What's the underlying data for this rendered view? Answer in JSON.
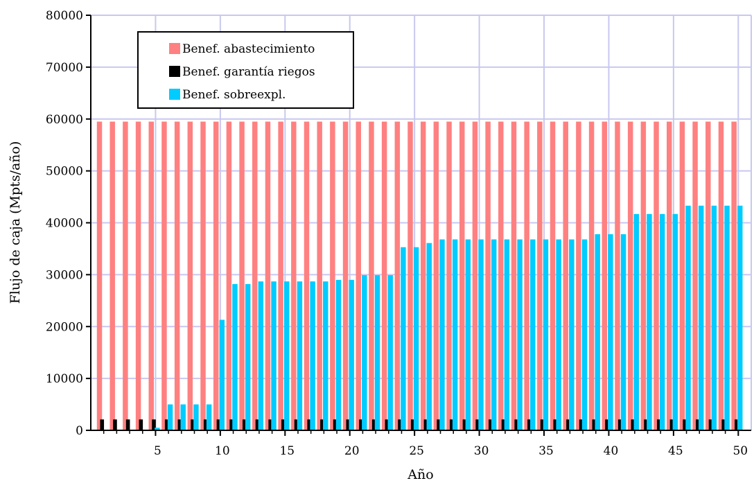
{
  "chart_data": {
    "type": "bar",
    "title": "",
    "xlabel": "Año",
    "ylabel": "Flujo de caja (Mpts/año)",
    "ylim": [
      0,
      80000
    ],
    "xlim": [
      0,
      51
    ],
    "yticks": [
      0,
      10000,
      20000,
      30000,
      40000,
      50000,
      60000,
      70000,
      80000
    ],
    "xticks": [
      5,
      10,
      15,
      20,
      25,
      30,
      35,
      40,
      45,
      50
    ],
    "grid": true,
    "legend_position": "top-left",
    "x": [
      1,
      2,
      3,
      4,
      5,
      6,
      7,
      8,
      9,
      10,
      11,
      12,
      13,
      14,
      15,
      16,
      17,
      18,
      19,
      20,
      21,
      22,
      23,
      24,
      25,
      26,
      27,
      28,
      29,
      30,
      31,
      32,
      33,
      34,
      35,
      36,
      37,
      38,
      39,
      40,
      41,
      42,
      43,
      44,
      45,
      46,
      47,
      48,
      49,
      50
    ],
    "series": [
      {
        "name": "Benef. abastecimiento",
        "color": "#FF8080",
        "values": [
          59500,
          59500,
          59500,
          59500,
          59500,
          59500,
          59500,
          59500,
          59500,
          59500,
          59500,
          59500,
          59500,
          59500,
          59500,
          59500,
          59500,
          59500,
          59500,
          59500,
          59500,
          59500,
          59500,
          59500,
          59500,
          59500,
          59500,
          59500,
          59500,
          59500,
          59500,
          59500,
          59500,
          59500,
          59500,
          59500,
          59500,
          59500,
          59500,
          59500,
          59500,
          59500,
          59500,
          59500,
          59500,
          59500,
          59500,
          59500,
          59500,
          59500
        ]
      },
      {
        "name": "Benef. garantía riegos",
        "color": "#000000",
        "values": [
          2100,
          2100,
          2100,
          2100,
          2100,
          2100,
          2100,
          2100,
          2100,
          2100,
          2100,
          2100,
          2100,
          2100,
          2100,
          2100,
          2100,
          2100,
          2100,
          2100,
          2100,
          2100,
          2100,
          2100,
          2100,
          2100,
          2100,
          2100,
          2100,
          2100,
          2100,
          2100,
          2100,
          2100,
          2100,
          2100,
          2100,
          2100,
          2100,
          2100,
          2100,
          2100,
          2100,
          2100,
          2100,
          2100,
          2100,
          2100,
          2100,
          2100
        ]
      },
      {
        "name": "Benef. sobreexpl.",
        "color": "#00CCFF",
        "values": [
          0,
          0,
          0,
          0,
          500,
          5000,
          5000,
          5000,
          5000,
          21300,
          28200,
          28200,
          28700,
          28700,
          28700,
          28700,
          28700,
          28700,
          29000,
          29000,
          29900,
          29900,
          29900,
          35300,
          35300,
          36100,
          36800,
          36800,
          36800,
          36800,
          36800,
          36800,
          36800,
          36800,
          36800,
          36800,
          36800,
          36800,
          37800,
          37800,
          37800,
          41700,
          41700,
          41700,
          41700,
          43300,
          43300,
          43300,
          43300,
          43300
        ]
      }
    ]
  },
  "colors": {
    "grid": "#C8C8F0",
    "axis": "#000000",
    "background": "#FFFFFF"
  }
}
